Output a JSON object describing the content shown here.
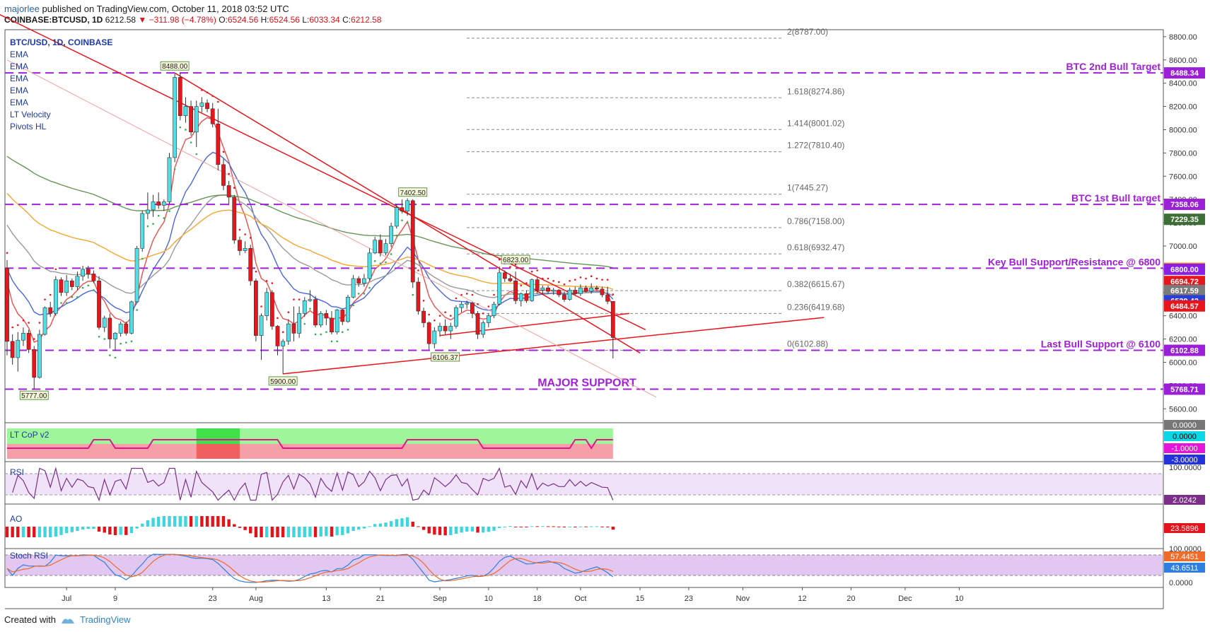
{
  "header": {
    "publisher": "majorlee",
    "published_text": "published on TradingView.com, October 11, 2018 03:52 UTC",
    "symbol": "COINBASE:BTCUSD, 1D",
    "last": "6212.58",
    "change": "−311.98 (−4.78%)",
    "ohlc": {
      "o_label": "O:",
      "o": "6524.56",
      "h_label": "H:",
      "h": "6524.56",
      "l_label": "L:",
      "l": "6033.34",
      "c_label": "C:",
      "c": "6212.58"
    }
  },
  "footer": {
    "created_with": "Created with",
    "brand": "TradingView"
  },
  "colors": {
    "up": "#4ee0e6",
    "down": "#e8151d",
    "ema_fast": "#ef4d4d",
    "ema_blue": "#4a64e0",
    "ema_gray": "#9a9a9a",
    "ema_orange": "#f5a62f",
    "ema_green": "#67945a",
    "purple_line": "#a020d8",
    "trendline": "#e8151d",
    "fib": "#8a8a8a",
    "rsi_bg": "#f0e2f8",
    "rsi_line": "#7b2f88",
    "stoch_bg": "#e2c8f0",
    "ao_up": "#3fd5de",
    "ao_down": "#e2131b",
    "cop_green": "#9ef59a",
    "cop_red": "#f5a0a8"
  },
  "chart_data": {
    "type": "candlestick",
    "legend": [
      "BTC/USD, 1D, COINBASE",
      "EMA",
      "EMA",
      "EMA",
      "EMA",
      "EMA",
      "LT Velocity",
      "Pivots HL"
    ],
    "x_ticks": [
      "Jul",
      "9",
      "23",
      "Aug",
      "13",
      "21",
      "Sep",
      "10",
      "18",
      "Oct",
      "15",
      "23",
      "Nov",
      "12",
      "20",
      "Dec",
      "10"
    ],
    "y_ticks": [
      "8800.00",
      "8600.00",
      "8400.00",
      "8200.00",
      "8000.00",
      "7800.00",
      "7600.00",
      "7400.00",
      "7200.00",
      "7000.00",
      "6800.00",
      "6600.00",
      "6400.00",
      "6200.00",
      "6000.00",
      "5800.00",
      "5600.00"
    ],
    "ylim": [
      5480,
      8860
    ],
    "candles": [
      [
        6810,
        6880,
        6060,
        6180
      ],
      [
        6180,
        6240,
        5980,
        6040
      ],
      [
        6040,
        6260,
        5920,
        6190
      ],
      [
        6190,
        6300,
        6140,
        6250
      ],
      [
        6250,
        6280,
        6080,
        6110
      ],
      [
        6110,
        6140,
        5770,
        5870
      ],
      [
        5870,
        6280,
        5860,
        6240
      ],
      [
        6240,
        6480,
        6230,
        6470
      ],
      [
        6470,
        6520,
        6390,
        6420
      ],
      [
        6420,
        6740,
        6400,
        6710
      ],
      [
        6710,
        6730,
        6570,
        6600
      ],
      [
        6600,
        6750,
        6570,
        6700
      ],
      [
        6700,
        6720,
        6620,
        6650
      ],
      [
        6650,
        6780,
        6620,
        6740
      ],
      [
        6740,
        6830,
        6700,
        6800
      ],
      [
        6800,
        6830,
        6720,
        6760
      ],
      [
        6760,
        6790,
        6680,
        6700
      ],
      [
        6700,
        6740,
        6280,
        6300
      ],
      [
        6300,
        6400,
        6260,
        6380
      ],
      [
        6380,
        6420,
        6120,
        6200
      ],
      [
        6200,
        6260,
        6100,
        6250
      ],
      [
        6250,
        6350,
        6220,
        6330
      ],
      [
        6330,
        6350,
        6230,
        6250
      ],
      [
        6250,
        6530,
        6240,
        6520
      ],
      [
        6520,
        7000,
        6510,
        6980
      ],
      [
        6980,
        7300,
        6950,
        7280
      ],
      [
        7280,
        7460,
        7230,
        7310
      ],
      [
        7310,
        7440,
        7250,
        7380
      ],
      [
        7380,
        7460,
        7320,
        7350
      ],
      [
        7350,
        7400,
        7300,
        7380
      ],
      [
        7380,
        7800,
        7360,
        7760
      ],
      [
        7760,
        8480,
        7720,
        8450
      ],
      [
        8450,
        8488,
        8080,
        8120
      ],
      [
        8120,
        8280,
        8060,
        8200
      ],
      [
        8200,
        8250,
        7950,
        7980
      ],
      [
        7980,
        8250,
        7850,
        8200
      ],
      [
        8200,
        8280,
        8150,
        8230
      ],
      [
        8230,
        8260,
        8150,
        8180
      ],
      [
        8180,
        8230,
        8020,
        8050
      ],
      [
        8050,
        8180,
        7650,
        7700
      ],
      [
        7700,
        7750,
        7480,
        7520
      ],
      [
        7520,
        7560,
        7350,
        7420
      ],
      [
        7420,
        7440,
        7020,
        7050
      ],
      [
        7050,
        7080,
        6920,
        6960
      ],
      [
        6960,
        7040,
        6940,
        6980
      ],
      [
        6980,
        7010,
        6660,
        6700
      ],
      [
        6700,
        6720,
        6180,
        6230
      ],
      [
        6230,
        6420,
        6020,
        6400
      ],
      [
        6400,
        6640,
        6360,
        6600
      ],
      [
        6600,
        6620,
        6280,
        6310
      ],
      [
        6310,
        6320,
        6060,
        6140
      ],
      [
        6140,
        6200,
        5900,
        6180
      ],
      [
        6180,
        6370,
        6150,
        6330
      ],
      [
        6330,
        6480,
        6180,
        6250
      ],
      [
        6250,
        6480,
        6210,
        6420
      ],
      [
        6420,
        6560,
        6390,
        6530
      ],
      [
        6530,
        6620,
        6520,
        6540
      ],
      [
        6540,
        6570,
        6300,
        6320
      ],
      [
        6320,
        6440,
        6300,
        6420
      ],
      [
        6420,
        6450,
        6320,
        6380
      ],
      [
        6380,
        6440,
        6240,
        6260
      ],
      [
        6260,
        6460,
        6240,
        6450
      ],
      [
        6450,
        6460,
        6320,
        6350
      ],
      [
        6350,
        6580,
        6340,
        6560
      ],
      [
        6560,
        6750,
        6550,
        6720
      ],
      [
        6720,
        6740,
        6650,
        6680
      ],
      [
        6680,
        6760,
        6650,
        6720
      ],
      [
        6720,
        6980,
        6700,
        6940
      ],
      [
        6940,
        7080,
        6930,
        7050
      ],
      [
        7050,
        7100,
        6910,
        6940
      ],
      [
        6940,
        7060,
        6920,
        7020
      ],
      [
        7020,
        7200,
        6990,
        7170
      ],
      [
        7170,
        7360,
        7150,
        7330
      ],
      [
        7330,
        7400,
        7280,
        7300
      ],
      [
        7300,
        7410,
        7260,
        7390
      ],
      [
        7390,
        7402,
        6640,
        6690
      ],
      [
        6690,
        6730,
        6410,
        6440
      ],
      [
        6440,
        6470,
        6300,
        6340
      ],
      [
        6340,
        6350,
        6110,
        6160
      ],
      [
        6160,
        6300,
        6120,
        6270
      ],
      [
        6270,
        6340,
        6220,
        6310
      ],
      [
        6310,
        6370,
        6240,
        6270
      ],
      [
        6270,
        6340,
        6200,
        6310
      ],
      [
        6310,
        6490,
        6290,
        6470
      ],
      [
        6470,
        6520,
        6430,
        6500
      ],
      [
        6500,
        6530,
        6460,
        6510
      ],
      [
        6510,
        6520,
        6380,
        6420
      ],
      [
        6420,
        6440,
        6200,
        6240
      ],
      [
        6240,
        6360,
        6210,
        6340
      ],
      [
        6340,
        6420,
        6300,
        6400
      ],
      [
        6400,
        6520,
        6380,
        6500
      ],
      [
        6500,
        6823,
        6490,
        6770
      ],
      [
        6770,
        6790,
        6690,
        6720
      ],
      [
        6720,
        6760,
        6690,
        6700
      ],
      [
        6700,
        6780,
        6500,
        6530
      ],
      [
        6530,
        6600,
        6480,
        6590
      ],
      [
        6590,
        6620,
        6510,
        6530
      ],
      [
        6530,
        6720,
        6520,
        6710
      ],
      [
        6710,
        6730,
        6590,
        6620
      ],
      [
        6620,
        6660,
        6580,
        6640
      ],
      [
        6640,
        6660,
        6590,
        6610
      ],
      [
        6610,
        6640,
        6580,
        6620
      ],
      [
        6620,
        6630,
        6560,
        6580
      ],
      [
        6580,
        6610,
        6520,
        6540
      ],
      [
        6540,
        6640,
        6530,
        6620
      ],
      [
        6620,
        6650,
        6580,
        6590
      ],
      [
        6590,
        6670,
        6570,
        6640
      ],
      [
        6640,
        6660,
        6600,
        6610
      ],
      [
        6610,
        6680,
        6590,
        6640
      ],
      [
        6640,
        6660,
        6620,
        6630
      ],
      [
        6630,
        6650,
        6560,
        6580
      ],
      [
        6580,
        6650,
        6500,
        6524
      ],
      [
        6524,
        6524,
        6033,
        6213
      ]
    ],
    "horizontal_lines": [
      {
        "price": 8488.34,
        "label": "BTC 2nd Bull Target",
        "tag": "8488.34",
        "tag_color": "#9b1fd6"
      },
      {
        "price": 7358.06,
        "label": "BTC 1st Bull target",
        "tag": "7358.06",
        "tag_color": "#9b1fd6"
      },
      {
        "price": 6809.11,
        "label": "Key Bull Support/Resistance @ 6800",
        "tag": "6809.11",
        "tag_color": "#f6a02b"
      },
      {
        "price": 6102.88,
        "label": "Last Bull Support @ 6100",
        "tag": "6102.88",
        "tag_color": "#9b1fd6"
      },
      {
        "price": 5768.71,
        "label": "MAJOR SUPPORT",
        "tag": "5768.71",
        "tag_color": "#9b1fd6"
      }
    ],
    "fib_levels": [
      {
        "price": 8787,
        "label": "2(8787.00)"
      },
      {
        "price": 8274.86,
        "label": "1.618(8274.86)"
      },
      {
        "price": 8001.02,
        "label": "1.414(8001.02)"
      },
      {
        "price": 7810.4,
        "label": "1.272(7810.40)"
      },
      {
        "price": 7445.27,
        "label": "1(7445.27)"
      },
      {
        "price": 7158.0,
        "label": "0.786(7158.00)"
      },
      {
        "price": 6932.47,
        "label": "0.618(6932.47)"
      },
      {
        "price": 6615.67,
        "label": "0.382(6615.67)"
      },
      {
        "price": 6419.68,
        "label": "0.236(6419.68)"
      },
      {
        "price": 6102.88,
        "label": "0(6102.88)"
      }
    ],
    "price_tags": [
      {
        "price": 7229.35,
        "text": "7229.35",
        "color": "#3d6e35"
      },
      {
        "price": 6800.0,
        "text": "6800.00",
        "color": "#8b1ee6"
      },
      {
        "price": 6694.72,
        "text": "6694.72",
        "color": "#e8151d"
      },
      {
        "price": 6617.59,
        "text": "6617.59",
        "color": "#7a7a7a"
      },
      {
        "price": 6529.42,
        "text": "6529.42",
        "color": "#2a3fd6"
      },
      {
        "price": 6484.57,
        "text": "6484.57",
        "color": "#e8151d"
      }
    ],
    "pivots": [
      {
        "index": 31,
        "price": 8488,
        "text": "8488.00",
        "pos": "above"
      },
      {
        "index": 75,
        "price": 7402.5,
        "text": "7402.50",
        "pos": "above"
      },
      {
        "index": 94,
        "price": 6823,
        "text": "6823.00",
        "pos": "above"
      },
      {
        "index": 5,
        "price": 5777,
        "text": "5777.00",
        "pos": "below"
      },
      {
        "index": 51,
        "price": 5900,
        "text": "5900.00",
        "pos": "below"
      },
      {
        "index": 81,
        "price": 6106.37,
        "text": "6106.37",
        "pos": "below"
      }
    ],
    "trendlines": [
      {
        "from": [
          -4,
          9050
        ],
        "to": [
          118,
          6280
        ]
      },
      {
        "from": [
          31,
          8488
        ],
        "to": [
          117,
          6080
        ]
      },
      {
        "from": [
          51,
          5900
        ],
        "to": [
          151,
          6385
        ]
      },
      {
        "from": [
          80,
          6230
        ],
        "to": [
          115,
          6420
        ]
      }
    ],
    "panels": {
      "cop": {
        "label": "LT CoP v2",
        "ticks": [
          "0.0000",
          "0.0000",
          "-1.0000",
          "-3.0000"
        ]
      },
      "rsi": {
        "label": "RSI",
        "ticks": [
          "100.0000",
          "2.0242"
        ]
      },
      "ao": {
        "label": "AO",
        "ticks": [
          "23.5896"
        ]
      },
      "stoch": {
        "label": "Stoch RSI",
        "ticks": [
          "100.0000",
          "57.4451",
          "43.6511",
          "0.0000"
        ]
      }
    }
  }
}
